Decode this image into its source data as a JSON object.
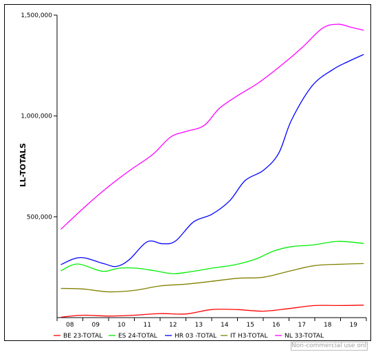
{
  "watermark": "Non-commercial use only",
  "chart_data": {
    "type": "line",
    "title": "",
    "ylabel": "LL-TOTALS",
    "xlabel": "",
    "categories": [
      "08",
      "09",
      "10",
      "11",
      "12",
      "13",
      "14",
      "15",
      "16",
      "17",
      "18",
      "19"
    ],
    "ytick_labels": [
      "1,500,000",
      "1,000,000",
      "500,000"
    ],
    "ylim": [
      0,
      1500000
    ],
    "grid": false,
    "legend_position": "bottom",
    "series": [
      {
        "name": "BE 23-TOTAL",
        "color": "#ff0000",
        "x": [
          2007.65,
          2008.5,
          2009.5,
          2010.5,
          2011.5,
          2012.5,
          2013.5,
          2014.5,
          2015.5,
          2016.5,
          2017.5,
          2018.5,
          2019.4
        ],
        "values": [
          2000,
          12000,
          8000,
          12000,
          20000,
          18000,
          40000,
          40000,
          32000,
          45000,
          60000,
          60000,
          62000
        ]
      },
      {
        "name": "ES 24-TOTAL",
        "color": "#00ee00",
        "x": [
          2007.65,
          2008.3,
          2009.25,
          2009.9,
          2010.6,
          2011.3,
          2012.0,
          2012.7,
          2013.5,
          2014.4,
          2015.2,
          2015.9,
          2016.6,
          2017.4,
          2018.4,
          2019.4
        ],
        "values": [
          232000,
          266000,
          230000,
          245000,
          245000,
          232000,
          218000,
          228000,
          245000,
          262000,
          290000,
          330000,
          352000,
          360000,
          378000,
          368000
        ]
      },
      {
        "name": "HR 03 -TOTAL",
        "color": "#0000ff",
        "x": [
          2007.65,
          2008.4,
          2009.3,
          2009.8,
          2010.3,
          2011.0,
          2011.6,
          2012.1,
          2012.8,
          2013.5,
          2014.2,
          2014.8,
          2015.5,
          2016.1,
          2016.6,
          2017.4,
          2018.2,
          2018.8,
          2019.4
        ],
        "values": [
          263000,
          298000,
          268000,
          254000,
          287000,
          376000,
          366000,
          380000,
          475000,
          512000,
          580000,
          680000,
          730000,
          815000,
          980000,
          1150000,
          1230000,
          1270000,
          1305000
        ]
      },
      {
        "name": "IT H3-TOTAL",
        "color": "#808000",
        "x": [
          2007.65,
          2008.5,
          2009.5,
          2010.5,
          2011.5,
          2012.5,
          2013.5,
          2014.5,
          2015.5,
          2016.5,
          2017.5,
          2018.5,
          2019.4
        ],
        "values": [
          145000,
          142000,
          128000,
          135000,
          157000,
          166000,
          180000,
          195000,
          200000,
          230000,
          258000,
          265000,
          268000
        ]
      },
      {
        "name": "NL 33-TOTAL",
        "color": "#ff00ff",
        "x": [
          2007.65,
          2008.5,
          2009.4,
          2010.3,
          2011.2,
          2011.9,
          2012.5,
          2013.2,
          2013.8,
          2014.5,
          2015.3,
          2016.2,
          2017.0,
          2017.8,
          2018.4,
          2018.9,
          2019.4
        ],
        "values": [
          438000,
          540000,
          640000,
          728000,
          808000,
          895000,
          923000,
          952000,
          1038000,
          1100000,
          1163000,
          1251000,
          1338000,
          1435000,
          1455000,
          1440000,
          1425000
        ]
      }
    ]
  }
}
